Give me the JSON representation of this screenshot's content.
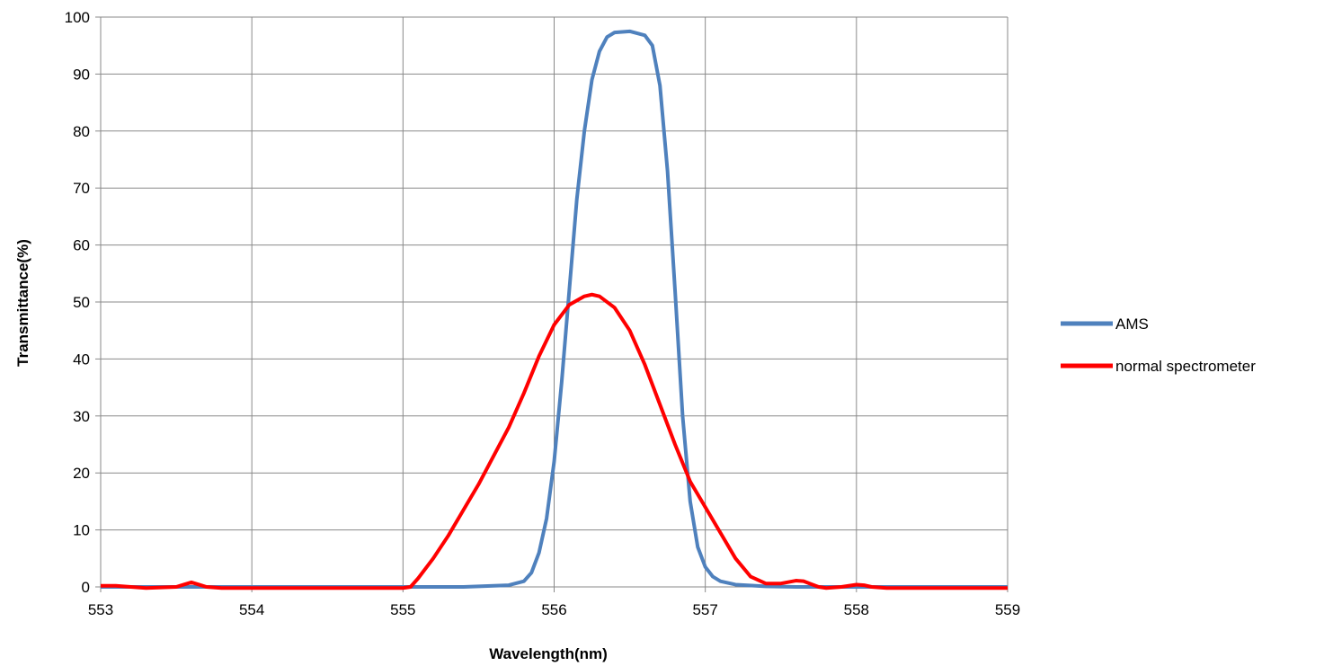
{
  "chart_data": {
    "type": "line",
    "title": "",
    "xlabel": "Wavelength(nm)",
    "ylabel": "Transmittance(%)",
    "xlim": [
      553,
      559
    ],
    "ylim": [
      0,
      100
    ],
    "xticks": [
      "553",
      "554",
      "555",
      "556",
      "557",
      "558",
      "559"
    ],
    "yticks": [
      "0",
      "10",
      "20",
      "30",
      "40",
      "50",
      "60",
      "70",
      "80",
      "90",
      "100"
    ],
    "grid": true,
    "legend_position": "right",
    "series": [
      {
        "name": "AMS",
        "color": "#4F81BD",
        "x": [
          553.0,
          553.5,
          554.0,
          554.5,
          555.0,
          555.4,
          555.7,
          555.8,
          555.85,
          555.9,
          555.95,
          556.0,
          556.05,
          556.1,
          556.15,
          556.2,
          556.25,
          556.3,
          556.35,
          556.4,
          556.5,
          556.6,
          556.65,
          556.7,
          556.75,
          556.8,
          556.85,
          556.9,
          556.95,
          557.0,
          557.05,
          557.1,
          557.2,
          557.4,
          557.6,
          558.0,
          558.5,
          559.0
        ],
        "y": [
          0,
          0,
          0,
          0,
          0,
          0,
          0.3,
          1.0,
          2.5,
          6,
          12,
          22,
          36,
          52,
          68,
          80,
          89,
          94,
          96.5,
          97.3,
          97.5,
          96.8,
          95,
          88,
          73,
          52,
          30,
          15,
          7,
          3.5,
          1.8,
          1.0,
          0.4,
          0.1,
          0,
          0,
          0,
          0
        ]
      },
      {
        "name": "normal spectrometer",
        "color": "#FF0000",
        "x": [
          553.0,
          553.1,
          553.2,
          553.3,
          553.5,
          553.55,
          553.6,
          553.65,
          553.7,
          553.8,
          554.0,
          554.5,
          555.0,
          555.05,
          555.1,
          555.2,
          555.3,
          555.4,
          555.5,
          555.6,
          555.7,
          555.8,
          555.9,
          556.0,
          556.1,
          556.2,
          556.25,
          556.3,
          556.4,
          556.5,
          556.6,
          556.7,
          556.8,
          556.9,
          557.0,
          557.1,
          557.2,
          557.3,
          557.4,
          557.5,
          557.6,
          557.65,
          557.7,
          557.75,
          557.8,
          557.9,
          558.0,
          558.05,
          558.1,
          558.2,
          558.5,
          559.0
        ],
        "y": [
          0.2,
          0.2,
          0,
          -0.2,
          0,
          0.4,
          0.8,
          0.4,
          0,
          -0.2,
          -0.2,
          -0.2,
          -0.2,
          0,
          1.5,
          5,
          9,
          13.5,
          18,
          23,
          28,
          34,
          40.5,
          46,
          49.5,
          51,
          51.3,
          51,
          49,
          45,
          39,
          32,
          25,
          18.5,
          14,
          9.5,
          5,
          1.8,
          0.6,
          0.6,
          1.1,
          1.0,
          0.5,
          0,
          -0.2,
          0,
          0.4,
          0.3,
          0,
          -0.2,
          -0.2,
          -0.2
        ]
      }
    ]
  }
}
